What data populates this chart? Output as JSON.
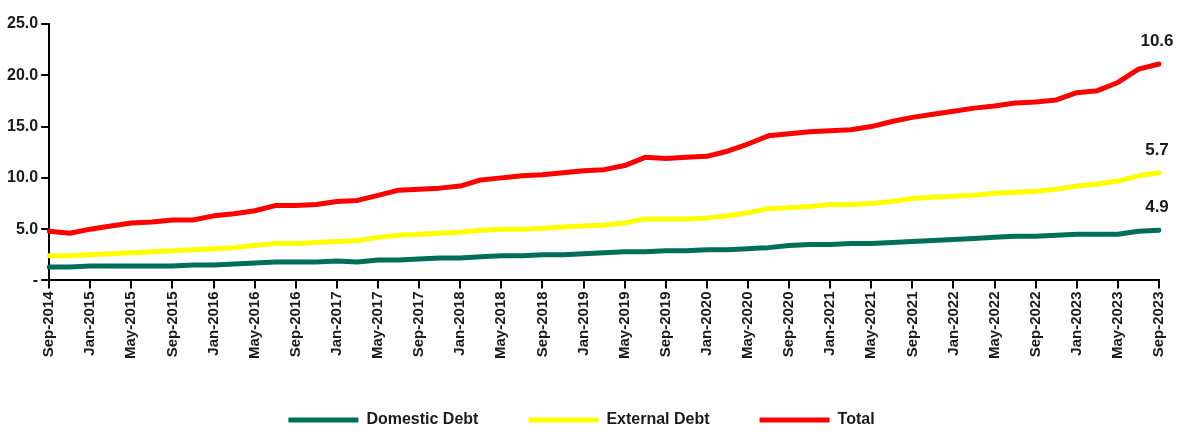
{
  "chart_data": {
    "type": "line",
    "categories": [
      "Sep-2014",
      null,
      "Jan-2015",
      null,
      "May-2015",
      null,
      "Sep-2015",
      null,
      "Jan-2016",
      null,
      "May-2016",
      null,
      "Sep-2016",
      null,
      "Jan-2017",
      null,
      "May-2017",
      null,
      "Sep-2017",
      null,
      "Jan-2018",
      null,
      "May-2018",
      null,
      "Sep-2018",
      null,
      "Jan-2019",
      null,
      "May-2019",
      null,
      "Sep-2019",
      null,
      "Jan-2020",
      null,
      "May-2020",
      null,
      "Sep-2020",
      null,
      "Jan-2021",
      null,
      "May-2021",
      null,
      "Sep-2021",
      null,
      "Jan-2022",
      null,
      "May-2022",
      null,
      "Sep-2022",
      null,
      "Jan-2023",
      null,
      "May-2023",
      null,
      "Sep-2023"
    ],
    "series": [
      {
        "name": "Domestic Debt",
        "color": "#006f5a",
        "values": [
          1.3,
          1.3,
          1.4,
          1.4,
          1.4,
          1.4,
          1.4,
          1.5,
          1.5,
          1.6,
          1.7,
          1.8,
          1.8,
          1.8,
          1.9,
          1.8,
          2.0,
          2.0,
          2.1,
          2.2,
          2.2,
          2.3,
          2.4,
          2.4,
          2.5,
          2.5,
          2.6,
          2.7,
          2.8,
          2.8,
          2.9,
          2.9,
          3.0,
          3.0,
          3.1,
          3.2,
          3.4,
          3.5,
          3.5,
          3.6,
          3.6,
          3.7,
          3.8,
          3.9,
          4.0,
          4.1,
          4.2,
          4.3,
          4.3,
          4.4,
          4.5,
          4.5,
          4.5,
          4.8,
          4.9
        ]
      },
      {
        "name": "External Debt",
        "color": "#ffff00",
        "values": [
          2.4,
          2.4,
          2.5,
          2.6,
          2.7,
          2.8,
          2.9,
          3.0,
          3.1,
          3.2,
          3.4,
          3.6,
          3.6,
          3.7,
          3.8,
          3.9,
          4.2,
          4.4,
          4.5,
          4.6,
          4.7,
          4.9,
          5.0,
          5.0,
          5.1,
          5.2,
          5.3,
          5.4,
          5.6,
          6.0,
          6.0,
          6.0,
          6.1,
          6.3,
          6.6,
          7.0,
          7.1,
          7.2,
          7.4,
          7.4,
          7.5,
          7.7,
          8.0,
          8.1,
          8.2,
          8.3,
          8.5,
          8.6,
          8.7,
          8.9,
          9.2,
          9.4,
          9.7,
          10.2,
          10.5
        ]
      },
      {
        "name": "Total",
        "color": "#ff0000",
        "values": [
          4.8,
          4.6,
          5.0,
          5.3,
          5.6,
          5.7,
          5.9,
          5.9,
          6.3,
          6.5,
          6.8,
          7.3,
          7.3,
          7.4,
          7.7,
          7.8,
          8.3,
          8.8,
          8.9,
          9.0,
          9.2,
          9.8,
          10.0,
          10.2,
          10.3,
          10.5,
          10.7,
          10.8,
          11.2,
          12.0,
          11.9,
          12.0,
          12.1,
          12.6,
          13.3,
          14.1,
          14.3,
          14.5,
          14.6,
          14.7,
          15.0,
          15.5,
          15.9,
          16.2,
          16.5,
          16.8,
          17.0,
          17.3,
          17.4,
          17.6,
          18.3,
          18.5,
          19.3,
          20.6,
          21.1
        ]
      }
    ],
    "ylim": [
      0,
      25
    ],
    "yticks": [
      {
        "value": 0,
        "label": "-"
      },
      {
        "value": 5,
        "label": "5.0"
      },
      {
        "value": 10,
        "label": "10.0"
      },
      {
        "value": 15,
        "label": "15.0"
      },
      {
        "value": 20,
        "label": "20.0"
      },
      {
        "value": 25,
        "label": "25.0"
      }
    ],
    "annotations": [
      {
        "text": "10.6",
        "x": "Sep-2023",
        "y": 21.1
      },
      {
        "text": "5.7",
        "x": "Sep-2023",
        "y": 10.5
      },
      {
        "text": "4.9",
        "x": "Sep-2023",
        "y": 4.9
      }
    ],
    "grid": false,
    "legend": "bottom",
    "marker": "none",
    "line_style": "solid"
  }
}
